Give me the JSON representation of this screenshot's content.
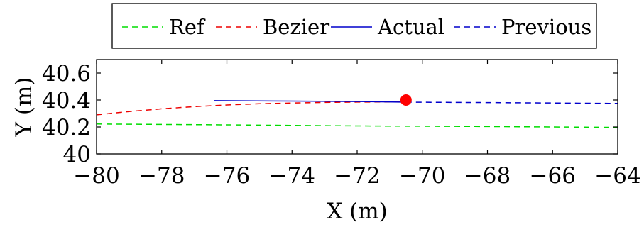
{
  "chart_data": {
    "type": "line",
    "xlabel": "X (m)",
    "ylabel": "Y (m)",
    "xlim": [
      -80,
      -64
    ],
    "ylim": [
      40,
      40.7
    ],
    "x_ticks": [
      -80,
      -78,
      -76,
      -74,
      -72,
      -70,
      -68,
      -66,
      -64
    ],
    "x_tick_labels": [
      "−80",
      "−78",
      "−76",
      "−74",
      "−72",
      "−70",
      "−68",
      "−66",
      "−64"
    ],
    "y_ticks": [
      40,
      40.2,
      40.4,
      40.6
    ],
    "y_tick_labels": [
      "40",
      "40.2",
      "40.4",
      "40.6"
    ],
    "grid": false,
    "legend_position": "top",
    "series": [
      {
        "name": "Ref",
        "color": "#00dd00",
        "style": "dashed",
        "x": [
          -80,
          -76,
          -72,
          -68,
          -64
        ],
        "y": [
          40.222,
          40.216,
          40.208,
          40.203,
          40.197
        ]
      },
      {
        "name": "Bezier",
        "color": "#ee0000",
        "style": "dashed",
        "x": [
          -80,
          -79,
          -78,
          -77,
          -76,
          -75,
          -74,
          -73,
          -72,
          -71,
          -70.5
        ],
        "y": [
          40.29,
          40.315,
          40.335,
          40.351,
          40.363,
          40.372,
          40.378,
          40.382,
          40.385,
          40.386,
          40.386
        ]
      },
      {
        "name": "Actual",
        "color": "#0000cc",
        "style": "solid",
        "x": [
          -76.4,
          -74,
          -72,
          -70.5
        ],
        "y": [
          40.395,
          40.392,
          40.389,
          40.384
        ]
      },
      {
        "name": "Previous",
        "color": "#0000cc",
        "style": "dashed",
        "x": [
          -70.5,
          -68,
          -66,
          -64
        ],
        "y": [
          40.384,
          40.381,
          40.378,
          40.375
        ]
      }
    ],
    "markers": [
      {
        "x": -70.5,
        "y": 40.4,
        "color": "#ff0000"
      }
    ]
  }
}
